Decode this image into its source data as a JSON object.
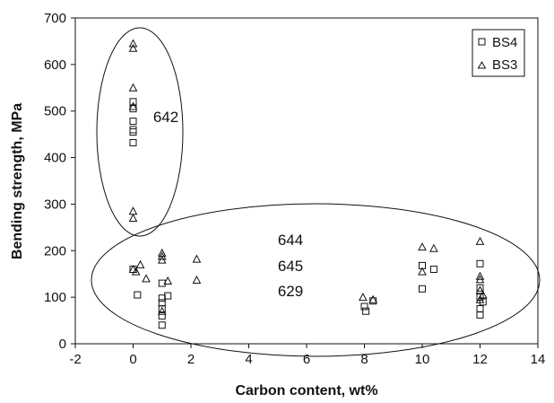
{
  "chart_data": {
    "type": "scatter",
    "title": "",
    "xlabel": "Carbon content, wt%",
    "ylabel": "Bending strength, MPa",
    "xlim": [
      -2,
      14
    ],
    "ylim": [
      0,
      700
    ],
    "xticks": [
      -2,
      0,
      2,
      4,
      6,
      8,
      10,
      12,
      14
    ],
    "yticks": [
      0,
      100,
      200,
      300,
      400,
      500,
      600,
      700
    ],
    "xtick_labels": [
      "-2",
      "0",
      "2",
      "4",
      "6",
      "8",
      "10",
      "12",
      "14"
    ],
    "ytick_labels": [
      "0",
      "100",
      "200",
      "300",
      "400",
      "500",
      "600",
      "700"
    ],
    "grid": false,
    "legend_position": "top-right",
    "series": [
      {
        "name": "BS4",
        "marker": "square",
        "points": [
          [
            0,
            520
          ],
          [
            0,
            505
          ],
          [
            0,
            478
          ],
          [
            0,
            460
          ],
          [
            0,
            455
          ],
          [
            0,
            432
          ],
          [
            0,
            160
          ],
          [
            0.15,
            105
          ],
          [
            1,
            130
          ],
          [
            1,
            98
          ],
          [
            1,
            88
          ],
          [
            1,
            75
          ],
          [
            1,
            60
          ],
          [
            1,
            40
          ],
          [
            1.2,
            103
          ],
          [
            8,
            80
          ],
          [
            8.05,
            70
          ],
          [
            8.3,
            92
          ],
          [
            10,
            168
          ],
          [
            10,
            118
          ],
          [
            10.4,
            160
          ],
          [
            12,
            172
          ],
          [
            12,
            120
          ],
          [
            12,
            100
          ],
          [
            12,
            75
          ],
          [
            12,
            62
          ],
          [
            12.1,
            90
          ]
        ]
      },
      {
        "name": "BS3",
        "marker": "triangle",
        "points": [
          [
            0,
            645
          ],
          [
            0,
            635
          ],
          [
            0,
            550
          ],
          [
            0,
            510
          ],
          [
            0,
            285
          ],
          [
            0,
            270
          ],
          [
            0,
            160
          ],
          [
            0.1,
            155
          ],
          [
            0.25,
            170
          ],
          [
            0.45,
            140
          ],
          [
            1,
            195
          ],
          [
            1,
            188
          ],
          [
            1,
            180
          ],
          [
            1,
            70
          ],
          [
            1.2,
            135
          ],
          [
            2.2,
            182
          ],
          [
            2.2,
            137
          ],
          [
            7.95,
            100
          ],
          [
            8.3,
            95
          ],
          [
            10,
            208
          ],
          [
            10,
            155
          ],
          [
            10.4,
            205
          ],
          [
            12,
            220
          ],
          [
            12,
            145
          ],
          [
            12,
            138
          ],
          [
            12,
            115
          ],
          [
            12,
            95
          ],
          [
            12.1,
            105
          ]
        ]
      }
    ],
    "annotations": [
      "642",
      "644",
      "645",
      "629"
    ]
  },
  "legend": {
    "items": [
      {
        "label": "BS4",
        "icon": "square-marker-icon"
      },
      {
        "label": "BS3",
        "icon": "triangle-marker-icon"
      }
    ]
  }
}
